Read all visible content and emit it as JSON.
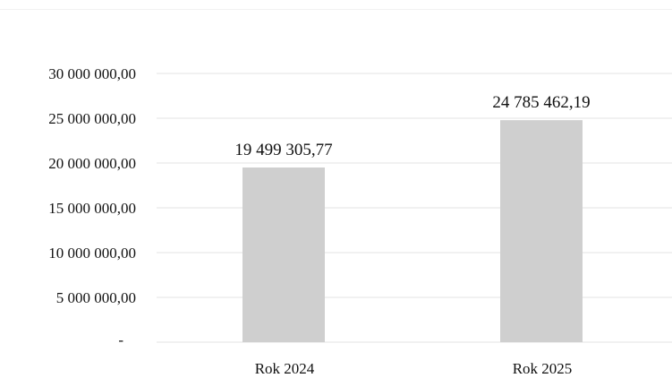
{
  "chart_data": {
    "type": "bar",
    "categories": [
      "Rok 2024",
      "Rok 2025"
    ],
    "values": [
      19499305.77,
      24785462.19
    ],
    "data_labels": [
      "19 499 305,77",
      "24 785 462,19"
    ],
    "y_ticks": [
      {
        "value": 0,
        "label": "-"
      },
      {
        "value": 5000000,
        "label": "5 000 000,00"
      },
      {
        "value": 10000000,
        "label": "10 000 000,00"
      },
      {
        "value": 15000000,
        "label": "15 000 000,00"
      },
      {
        "value": 20000000,
        "label": "20 000 000,00"
      },
      {
        "value": 25000000,
        "label": "25 000 000,00"
      },
      {
        "value": 30000000,
        "label": "30 000 000,00"
      }
    ],
    "ylim": [
      0,
      30000000
    ],
    "grid": true,
    "bar_color": "#cfcfcf",
    "title": "",
    "xlabel": "",
    "ylabel": ""
  }
}
